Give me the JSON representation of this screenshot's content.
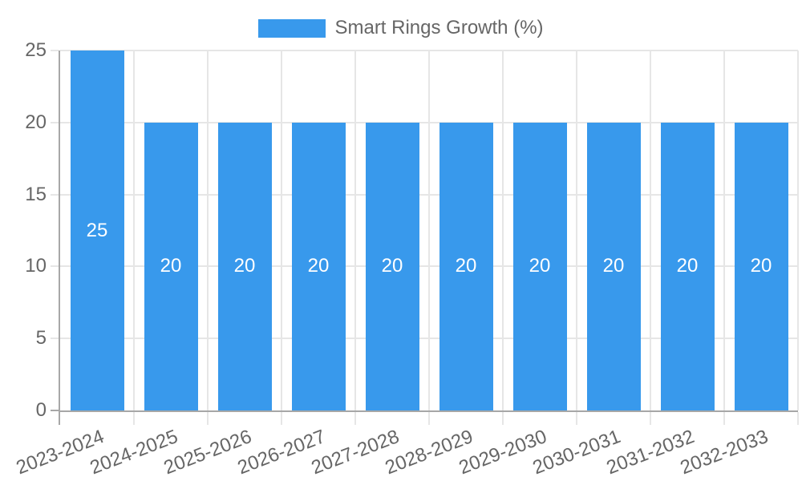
{
  "legend": {
    "label": "Smart Rings Growth (%)"
  },
  "colors": {
    "bar": "#3899EC",
    "grid": "#e6e6e6",
    "axis": "#a7a7a7",
    "tick_text": "#666666",
    "bar_label": "#ffffff",
    "background": "#ffffff"
  },
  "chart_data": {
    "type": "bar",
    "title": "Smart Rings Growth (%)",
    "series_name": "Smart Rings Growth (%)",
    "categories": [
      "2023-2024",
      "2024-2025",
      "2025-2026",
      "2026-2027",
      "2027-2028",
      "2028-2029",
      "2029-2030",
      "2030-2031",
      "2031-2032",
      "2032-2033"
    ],
    "values": [
      25,
      20,
      20,
      20,
      20,
      20,
      20,
      20,
      20,
      20
    ],
    "bar_value_labels": [
      "25",
      "20",
      "20",
      "20",
      "20",
      "20",
      "20",
      "20",
      "20",
      "20"
    ],
    "xlabel": "",
    "ylabel": "",
    "ylim": [
      0,
      25
    ],
    "yticks": [
      0,
      5,
      10,
      15,
      20,
      25
    ],
    "grid": true,
    "legend_position": "top",
    "x_label_rotation_deg": -21
  }
}
